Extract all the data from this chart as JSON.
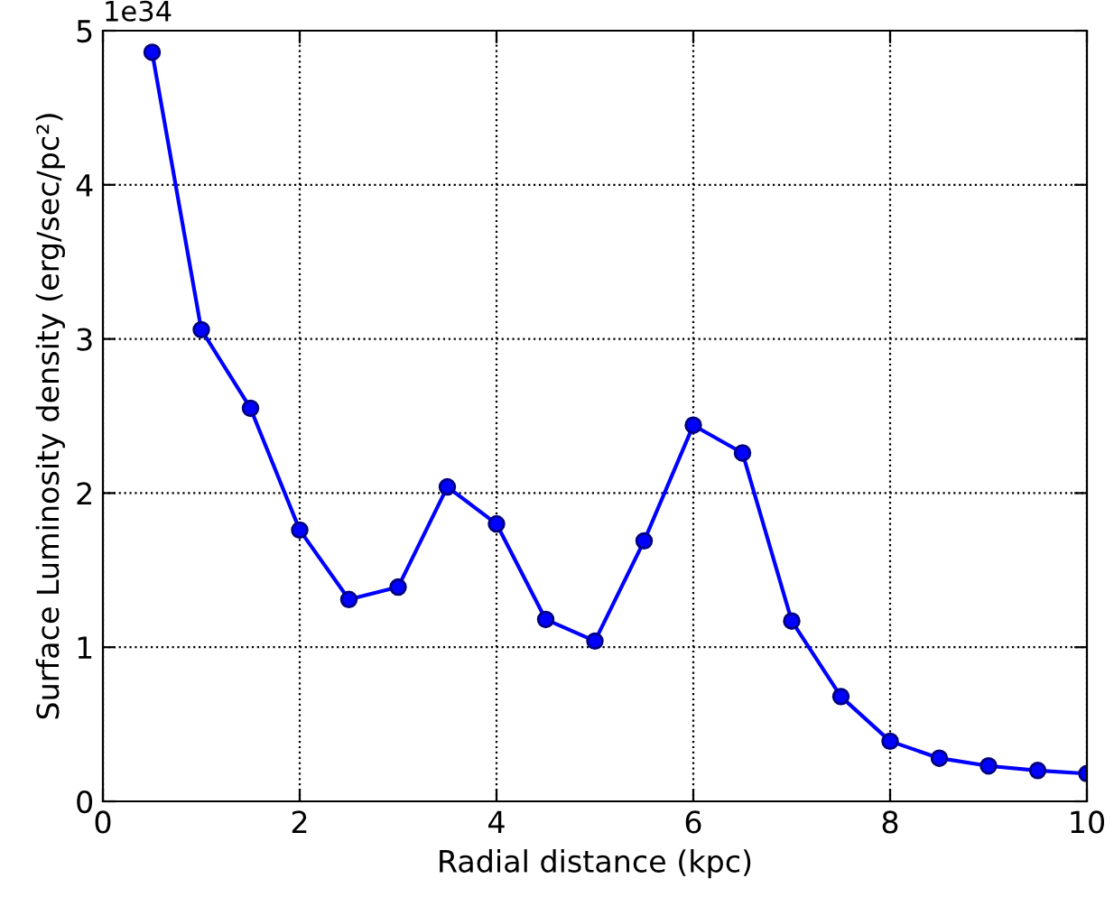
{
  "chart_data": {
    "type": "line",
    "xlabel": "Radial distance (kpc)",
    "ylabel": "Surface Luminosity density (erg/sec/pc²)",
    "annotations": [
      "1e34"
    ],
    "x": [
      0.5,
      1.0,
      1.5,
      2.0,
      2.5,
      3.0,
      3.5,
      4.0,
      4.5,
      5.0,
      5.5,
      6.0,
      6.5,
      7.0,
      7.5,
      8.0,
      8.5,
      9.0,
      9.5,
      10.0
    ],
    "series": [
      {
        "color": "#0000ff",
        "values": [
          4.86,
          3.06,
          2.55,
          1.76,
          1.31,
          1.39,
          2.04,
          1.8,
          1.18,
          1.04,
          1.69,
          2.44,
          2.26,
          1.17,
          0.68,
          0.39,
          0.28,
          0.23,
          0.2,
          0.18
        ]
      }
    ],
    "xlim": [
      0,
      10
    ],
    "xticks": [
      0,
      2,
      4,
      6,
      8,
      10
    ],
    "ylim": [
      0,
      5
    ],
    "yticks": [
      0,
      1,
      2,
      3,
      4,
      5
    ],
    "grid": true,
    "marker": "circle",
    "line_style": "solid",
    "legend": false
  }
}
